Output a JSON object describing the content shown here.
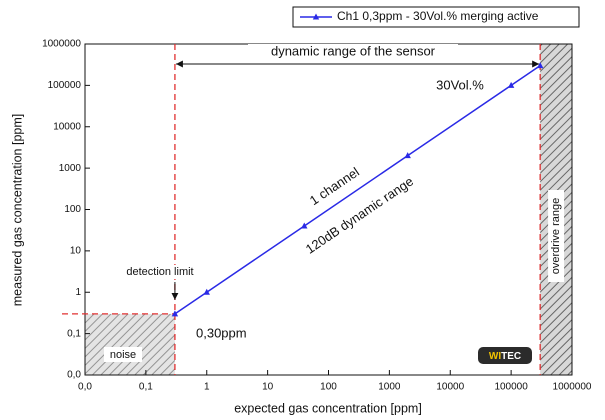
{
  "chart_data": {
    "type": "line",
    "xlabel": "expected gas concentration [ppm]",
    "ylabel": "measured gas concentration [ppm]",
    "xscale": "log",
    "yscale": "log",
    "xlim": [
      0.01,
      1000000
    ],
    "ylim": [
      0.01,
      1000000
    ],
    "xticks": [
      {
        "value": 0.01,
        "label": "0,0"
      },
      {
        "value": 0.1,
        "label": "0,1"
      },
      1,
      10,
      100,
      1000,
      10000,
      100000,
      1000000
    ],
    "yticks": [
      {
        "value": 0.01,
        "label": "0,0"
      },
      {
        "value": 0.1,
        "label": "0,1"
      },
      1,
      10,
      100,
      1000,
      10000,
      100000,
      1000000
    ],
    "grid": false,
    "legend": "top-right",
    "series": [
      {
        "name": "Ch1 0,3ppm - 30Vol.% merging active",
        "color": "#2a2ae6",
        "x": [
          0.3,
          1,
          40,
          2000,
          100000,
          300000
        ],
        "values": [
          0.3,
          1,
          40,
          2000,
          100000,
          300000
        ]
      }
    ],
    "annotations": {
      "dynamic_range": "dynamic range of the sensor",
      "upper": {
        "text": "30Vol.%",
        "value": 300000
      },
      "lower": {
        "text": "0,30ppm",
        "value": 0.3
      },
      "channel": "1 channel",
      "db": "120dB dynamic range",
      "detection": "detection limit",
      "noise": "noise",
      "overdrive": "overdrive range"
    },
    "logo": [
      "WI",
      "TEC"
    ]
  }
}
